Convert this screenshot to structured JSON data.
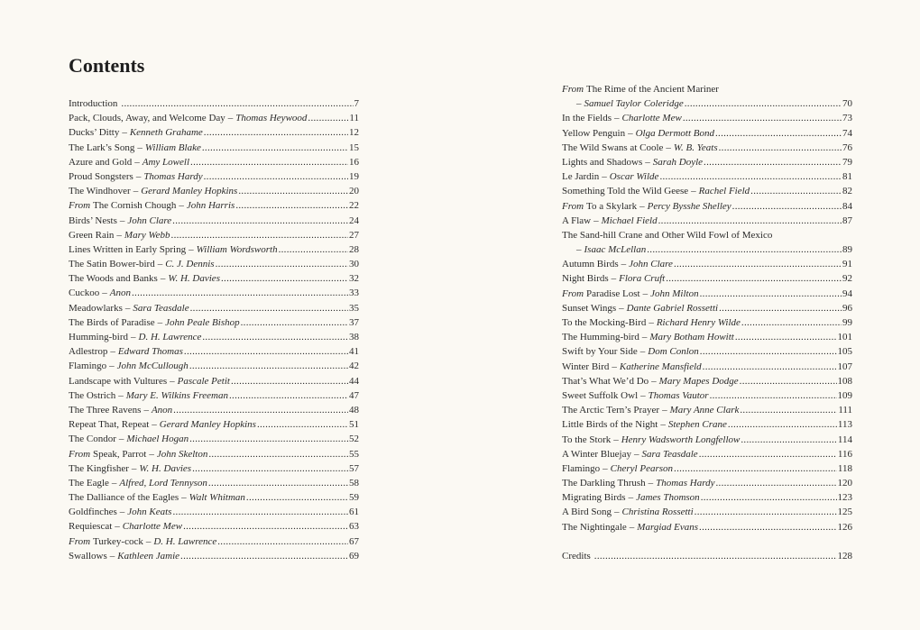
{
  "heading": "Contents",
  "separator": "–",
  "left": [
    {
      "title": "Introduction",
      "page": 7
    },
    {
      "title": "Pack, Clouds, Away, and Welcome Day",
      "author": "Thomas Heywood",
      "page": 11
    },
    {
      "title": "Ducks’ Ditty",
      "author": "Kenneth Grahame",
      "page": 12
    },
    {
      "title": "The Lark’s Song",
      "author": "William Blake",
      "page": 15
    },
    {
      "title": "Azure and Gold",
      "author": "Amy Lowell",
      "page": 16
    },
    {
      "title": "Proud Songsters",
      "author": "Thomas Hardy",
      "page": 19
    },
    {
      "title": "The Windhover",
      "author": "Gerard Manley Hopkins",
      "page": 20
    },
    {
      "prefix": "From",
      "title": "The Cornish Chough",
      "author": "John Harris",
      "page": 22
    },
    {
      "title": "Birds’ Nests",
      "author": "John Clare",
      "page": 24
    },
    {
      "title": "Green Rain",
      "author": "Mary Webb",
      "page": 27
    },
    {
      "title": "Lines Written in Early Spring",
      "author": "William Wordsworth",
      "page": 28
    },
    {
      "title": "The Satin Bower-bird",
      "author": "C. J. Dennis",
      "page": 30
    },
    {
      "title": "The Woods and Banks",
      "author": "W. H. Davies",
      "page": 32
    },
    {
      "title": "Cuckoo",
      "author": "Anon",
      "page": 33
    },
    {
      "title": "Meadowlarks",
      "author": "Sara Teasdale",
      "page": 35
    },
    {
      "title": "The Birds of Paradise",
      "author": "John Peale Bishop",
      "page": 37
    },
    {
      "title": "Humming-bird",
      "author": "D. H. Lawrence",
      "page": 38
    },
    {
      "title": "Adlestrop",
      "author": "Edward Thomas",
      "page": 41
    },
    {
      "title": "Flamingo",
      "author": "John McCullough",
      "page": 42
    },
    {
      "title": "Landscape with Vultures",
      "author": "Pascale Petit",
      "page": 44
    },
    {
      "title": "The Ostrich",
      "author": "Mary E. Wilkins Freeman",
      "page": 47
    },
    {
      "title": "The Three Ravens",
      "author": "Anon",
      "page": 48
    },
    {
      "title": "Repeat That, Repeat",
      "author": "Gerard Manley Hopkins",
      "page": 51
    },
    {
      "title": "The Condor",
      "author": "Michael Hogan",
      "page": 52
    },
    {
      "prefix": "From",
      "title": "Speak, Parrot",
      "author": "John Skelton",
      "page": 55
    },
    {
      "title": "The Kingfisher",
      "author": "W. H. Davies",
      "page": 57
    },
    {
      "title": "The Eagle",
      "author": "Alfred, Lord Tennyson",
      "page": 58
    },
    {
      "title": "The Dalliance of the Eagles",
      "author": "Walt Whitman",
      "page": 59
    },
    {
      "title": "Goldfinches",
      "author": "John Keats",
      "page": 61
    },
    {
      "title": "Requiescat",
      "author": "Charlotte Mew",
      "page": 63
    },
    {
      "prefix": "From",
      "title": "Turkey-cock",
      "author": "D. H. Lawrence",
      "page": 67
    },
    {
      "title": "Swallows",
      "author": "Kathleen Jamie",
      "page": 69
    }
  ],
  "right": [
    {
      "prefix": "From",
      "title": "The Rime of the Ancient Mariner",
      "author": "Samuel Taylor Coleridge",
      "page": 70
    },
    {
      "title": "In the Fields",
      "author": "Charlotte Mew",
      "page": 73
    },
    {
      "title": "Yellow Penguin",
      "author": "Olga Dermott Bond",
      "page": 74
    },
    {
      "title": "The Wild Swans at Coole",
      "author": "W. B. Yeats",
      "page": 76
    },
    {
      "title": "Lights and Shadows",
      "author": "Sarah Doyle",
      "page": 79
    },
    {
      "title": "Le Jardin",
      "author": "Oscar Wilde",
      "page": 81
    },
    {
      "title": "Something Told the Wild Geese",
      "author": "Rachel Field",
      "page": 82
    },
    {
      "prefix": "From",
      "title": "To a Skylark",
      "author": "Percy Bysshe Shelley",
      "page": 84
    },
    {
      "title": "A Flaw",
      "author": "Michael Field",
      "page": 87
    },
    {
      "title": "The Sand-hill Crane and Other Wild Fowl of Mexico",
      "author": "Isaac McLellan",
      "page": 89
    },
    {
      "title": "Autumn Birds",
      "author": "John Clare",
      "page": 91
    },
    {
      "title": "Night Birds",
      "author": "Flora Cruft",
      "page": 92
    },
    {
      "prefix": "From",
      "title": "Paradise Lost",
      "author": "John Milton",
      "page": 94
    },
    {
      "title": "Sunset Wings",
      "author": "Dante Gabriel Rossetti",
      "page": 96
    },
    {
      "title": "To the Mocking-Bird",
      "author": "Richard Henry Wilde",
      "page": 99
    },
    {
      "title": "The Humming-bird",
      "author": "Mary Botham Howitt",
      "page": 101
    },
    {
      "title": "Swift by Your Side",
      "author": "Dom Conlon",
      "page": 105
    },
    {
      "title": "Winter Bird",
      "author": "Katherine Mansfield",
      "page": 107
    },
    {
      "title": "That’s What We’d Do",
      "author": "Mary Mapes Dodge",
      "page": 108
    },
    {
      "title": "Sweet Suffolk Owl",
      "author": "Thomas Vautor",
      "page": 109
    },
    {
      "title": "The Arctic Tern’s Prayer",
      "author": "Mary Anne Clark",
      "page": 111
    },
    {
      "title": "Little Birds of the Night",
      "author": "Stephen Crane",
      "page": 113
    },
    {
      "title": "To the Stork",
      "author": "Henry Wadsworth Longfellow",
      "page": 114
    },
    {
      "title": "A Winter Bluejay",
      "author": "Sara Teasdale",
      "page": 116
    },
    {
      "title": "Flamingo",
      "author": "Cheryl Pearson",
      "page": 118
    },
    {
      "title": "The Darkling Thrush",
      "author": "Thomas Hardy",
      "page": 120
    },
    {
      "title": "Migrating Birds",
      "author": "James Thomson",
      "page": 123
    },
    {
      "title": "A Bird Song",
      "author": "Christina Rossetti",
      "page": 125
    },
    {
      "title": "The Nightingale",
      "author": "Margiad Evans",
      "page": 126
    }
  ],
  "credits": {
    "title": "Credits",
    "page": 128
  }
}
